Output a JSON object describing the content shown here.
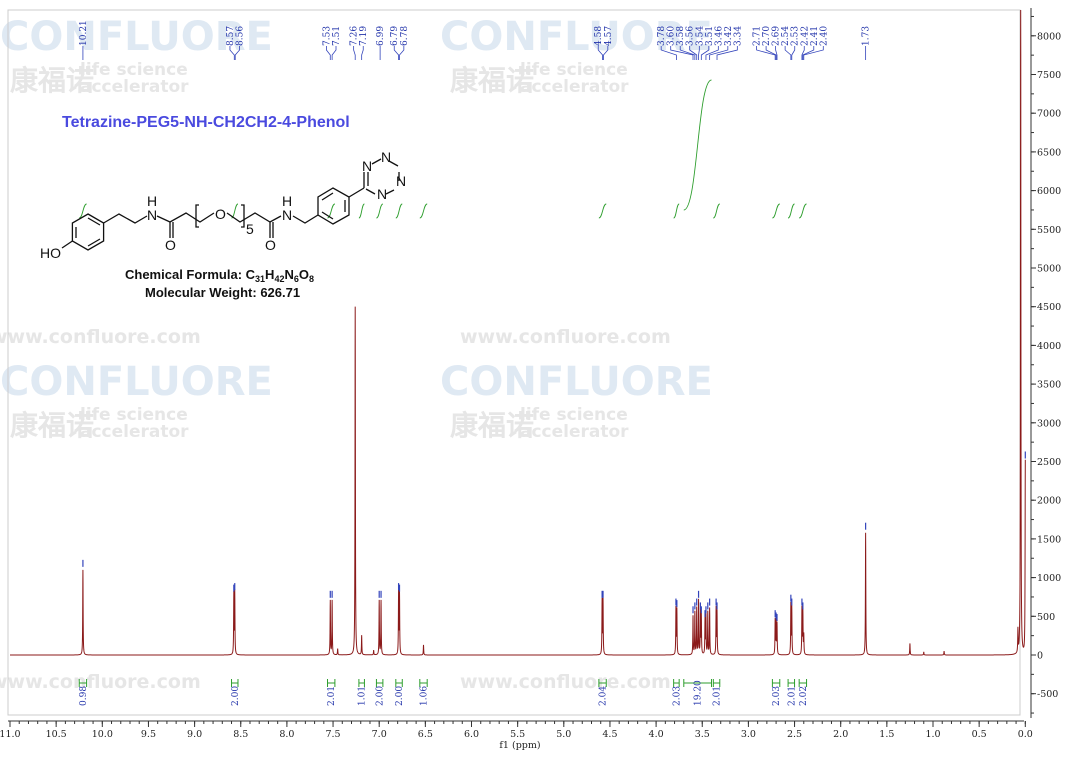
{
  "watermark": {
    "brand": "CONFLUORE",
    "url": "www.confluore.com",
    "chinese": "康福诺",
    "tagline1": "life science",
    "tagline2": "accelerator"
  },
  "compound": {
    "name": "Tetrazine-PEG5-NH-CH2CH2-4-Phenol",
    "formula_label": "Chemical Formula: ",
    "formula_parts": [
      "C",
      "31",
      "H",
      "42",
      "N",
      "6",
      "O",
      "8"
    ],
    "mw_label": "Molecular Weight: 626.71",
    "atoms": {
      "ho": "HO",
      "n": "N",
      "h": "H",
      "o": "O",
      "repeat": "5"
    }
  },
  "colors": {
    "spectrum": "#8b1a1a",
    "integral": "#2e9e2e",
    "peak_label": "#2233aa",
    "title": "#4a4adf"
  },
  "chart_data": {
    "type": "line",
    "title": "Tetrazine-PEG5-NH-CH2CH2-4-Phenol",
    "xlabel": "f1 (ppm)",
    "xlim": [
      11.0,
      0.0
    ],
    "ylim": [
      -800,
      8300
    ],
    "grid": false,
    "x_ticks": [
      "11.0",
      "10.5",
      "10.0",
      "9.5",
      "9.0",
      "8.5",
      "8.0",
      "7.5",
      "7.0",
      "6.5",
      "6.0",
      "5.5",
      "5.0",
      "4.5",
      "4.0",
      "3.5",
      "3.0",
      "2.5",
      "2.0",
      "1.5",
      "1.0",
      "0.5",
      "0.0"
    ],
    "y_ticks": [
      "8000",
      "7500",
      "7000",
      "6500",
      "6000",
      "5500",
      "5000",
      "4500",
      "4000",
      "3500",
      "3000",
      "2500",
      "2000",
      "1500",
      "1000",
      "500",
      "0",
      "-500"
    ],
    "peaks": [
      [
        10.21,
        1100
      ],
      [
        8.575,
        780
      ],
      [
        8.565,
        800
      ],
      [
        7.53,
        700
      ],
      [
        7.51,
        700
      ],
      [
        7.45,
        80
      ],
      [
        7.26,
        4500
      ],
      [
        7.19,
        250
      ],
      [
        7.06,
        60
      ],
      [
        7.0,
        700
      ],
      [
        6.98,
        700
      ],
      [
        6.79,
        800
      ],
      [
        6.78,
        780
      ],
      [
        6.52,
        130
      ],
      [
        4.585,
        700
      ],
      [
        4.575,
        700
      ],
      [
        3.785,
        600
      ],
      [
        3.775,
        580
      ],
      [
        3.6,
        500
      ],
      [
        3.58,
        550
      ],
      [
        3.56,
        600
      ],
      [
        3.54,
        700
      ],
      [
        3.52,
        550
      ],
      [
        3.51,
        500
      ],
      [
        3.47,
        450
      ],
      [
        3.46,
        500
      ],
      [
        3.44,
        550
      ],
      [
        3.42,
        600
      ],
      [
        3.35,
        600
      ],
      [
        3.34,
        550
      ],
      [
        2.71,
        450
      ],
      [
        2.7,
        420
      ],
      [
        2.69,
        400
      ],
      [
        2.54,
        650
      ],
      [
        2.53,
        600
      ],
      [
        2.42,
        600
      ],
      [
        2.41,
        550
      ],
      [
        2.4,
        250
      ],
      [
        1.73,
        1580
      ],
      [
        1.25,
        150
      ],
      [
        1.1,
        40
      ],
      [
        0.88,
        50
      ],
      [
        0.08,
        300
      ],
      [
        0.05,
        9000
      ],
      [
        0.0,
        2500
      ]
    ],
    "peak_labels": [
      "10.21",
      "8.57",
      "8.56",
      "7.53",
      "7.51",
      "7.26",
      "7.19",
      "6.99",
      "6.79",
      "6.78",
      "4.58",
      "4.57",
      "3.78",
      "3.60",
      "3.58",
      "3.56",
      "3.54",
      "3.51",
      "3.46",
      "3.42",
      "3.34",
      "2.71",
      "2.70",
      "2.69",
      "2.54",
      "2.53",
      "2.42",
      "2.41",
      "2.40",
      "1.73"
    ],
    "integrals": [
      {
        "from": 10.25,
        "to": 10.17,
        "value": "0.98"
      },
      {
        "from": 8.6,
        "to": 8.53,
        "value": "2.00"
      },
      {
        "from": 7.56,
        "to": 7.48,
        "value": "2.01"
      },
      {
        "from": 7.22,
        "to": 7.16,
        "value": "1.01"
      },
      {
        "from": 7.03,
        "to": 6.96,
        "value": "2.00"
      },
      {
        "from": 6.82,
        "to": 6.75,
        "value": "2.00"
      },
      {
        "from": 6.56,
        "to": 6.48,
        "value": "1.06"
      },
      {
        "from": 4.62,
        "to": 4.54,
        "value": "2.04"
      },
      {
        "from": 3.81,
        "to": 3.75,
        "value": "2.03"
      },
      {
        "from": 3.7,
        "to": 3.4,
        "value": "19.20"
      },
      {
        "from": 3.38,
        "to": 3.31,
        "value": "2.01"
      },
      {
        "from": 2.74,
        "to": 2.66,
        "value": "2.03"
      },
      {
        "from": 2.57,
        "to": 2.5,
        "value": "2.01"
      },
      {
        "from": 2.45,
        "to": 2.37,
        "value": "2.02"
      }
    ]
  }
}
